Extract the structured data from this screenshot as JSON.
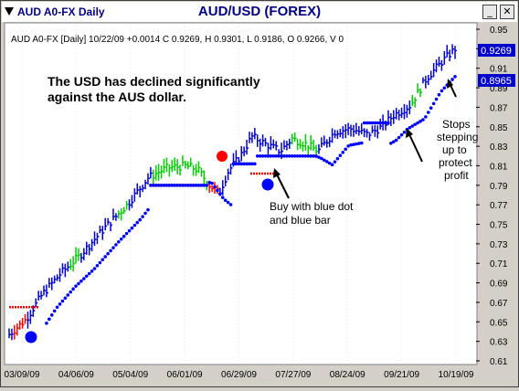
{
  "window": {
    "title_left": "AUD A0-FX Daily",
    "title_center": "AUD/USD (FOREX)",
    "min_glyph": "_",
    "close_glyph": "✕"
  },
  "chart_data": {
    "type": "bar",
    "info_line": "AUD A0-FX [Daily] 10/22/09 +0.0014 C 0.9269, H 0.9301, L 0.9186, O 0.9266, V 0",
    "annotation_main": [
      "The USD has declined significantly",
      "against the AUS dollar."
    ],
    "annotation_buy": [
      "Buy with blue dot",
      "and blue bar"
    ],
    "annotation_stops": [
      "Stops",
      "stepping",
      "up to",
      "protect",
      "profit"
    ],
    "yticks": [
      "0.95",
      "0.93",
      "0.91",
      "0.89",
      "0.87",
      "0.85",
      "0.83",
      "0.81",
      "0.79",
      "0.77",
      "0.75",
      "0.73",
      "0.71",
      "0.69",
      "0.67",
      "0.65",
      "0.63",
      "0.61"
    ],
    "ylim": [
      0.61,
      0.95
    ],
    "xticks": [
      "03/09/09",
      "04/06/09",
      "05/04/09",
      "06/01/09",
      "06/29/09",
      "07/27/09",
      "08/24/09",
      "09/21/09",
      "10/19/09"
    ],
    "price_label_close": "0.9269",
    "price_label_stop": "0.8965",
    "colors": {
      "up": "#0000cc",
      "neutral": "#00cc00",
      "down": "#ff0000",
      "stop": "#0000ff",
      "label_bg": "#0000cc"
    }
  }
}
